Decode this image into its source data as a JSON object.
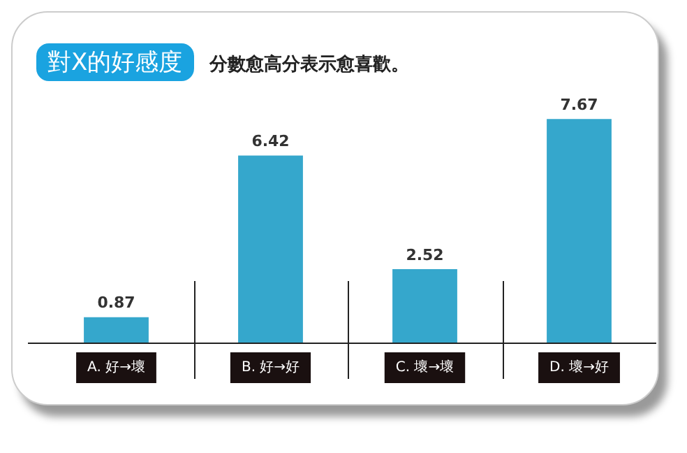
{
  "chart_data": {
    "type": "bar",
    "title": "對X的好感度",
    "subtitle": "分數愈高分表示愈喜歡。",
    "categories": [
      "A. 好→壞",
      "B. 好→好",
      "C. 壞→壞",
      "D. 壞→好"
    ],
    "values": [
      0.87,
      6.42,
      2.52,
      7.67
    ],
    "color": "#35a7cc",
    "data_labels": true,
    "relative": false,
    "grid": false,
    "legend": false
  }
}
